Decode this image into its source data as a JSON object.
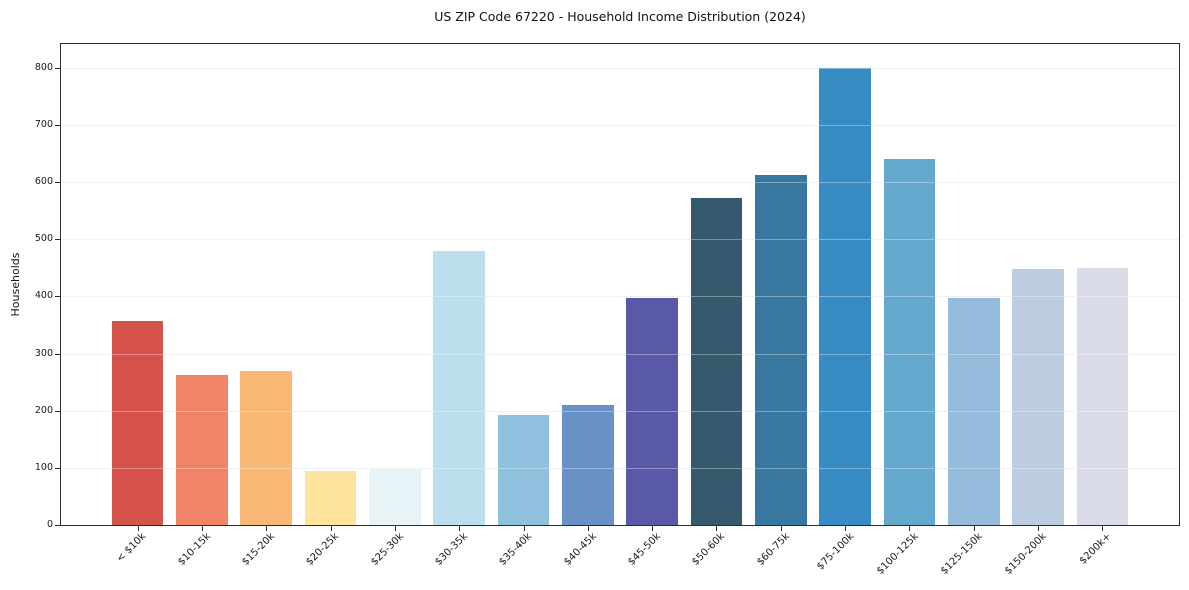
{
  "page": {
    "background": "#ffffff"
  },
  "chart_data": {
    "type": "bar",
    "title": "US ZIP Code 67220 - Household Income Distribution (2024)",
    "xlabel": "",
    "ylabel": "Households",
    "ylim": [
      0,
      842
    ],
    "yticks": [
      0,
      100,
      200,
      300,
      400,
      500,
      600,
      700,
      800
    ],
    "grid": "horizontal",
    "legend": "none",
    "categories": [
      "< $10k",
      "$10-15k",
      "$15-20k",
      "$20-25k",
      "$25-30k",
      "$30-35k",
      "$35-40k",
      "$40-45k",
      "$45-50k",
      "$50-60k",
      "$60-75k",
      "$75-100k",
      "$100-125k",
      "$125-150k",
      "$150-200k",
      "$200k+"
    ],
    "values": [
      358,
      263,
      270,
      95,
      100,
      479,
      193,
      210,
      398,
      572,
      612,
      800,
      641,
      398,
      448,
      450
    ],
    "bar_colors": [
      "#d6534b",
      "#f18467",
      "#fab877",
      "#fde49c",
      "#e7f3f6",
      "#bbdfec",
      "#8fc0dd",
      "#6991c5",
      "#5a59a7",
      "#365a6d",
      "#3878a0",
      "#378dc3",
      "#64a8ce",
      "#94badc",
      "#bccde2",
      "#d9dbe9"
    ]
  },
  "colors": {
    "grid": "#e8e8ee",
    "spine": "#2b2b2b",
    "text": "#1a1a1a",
    "background": "#ffffff"
  }
}
